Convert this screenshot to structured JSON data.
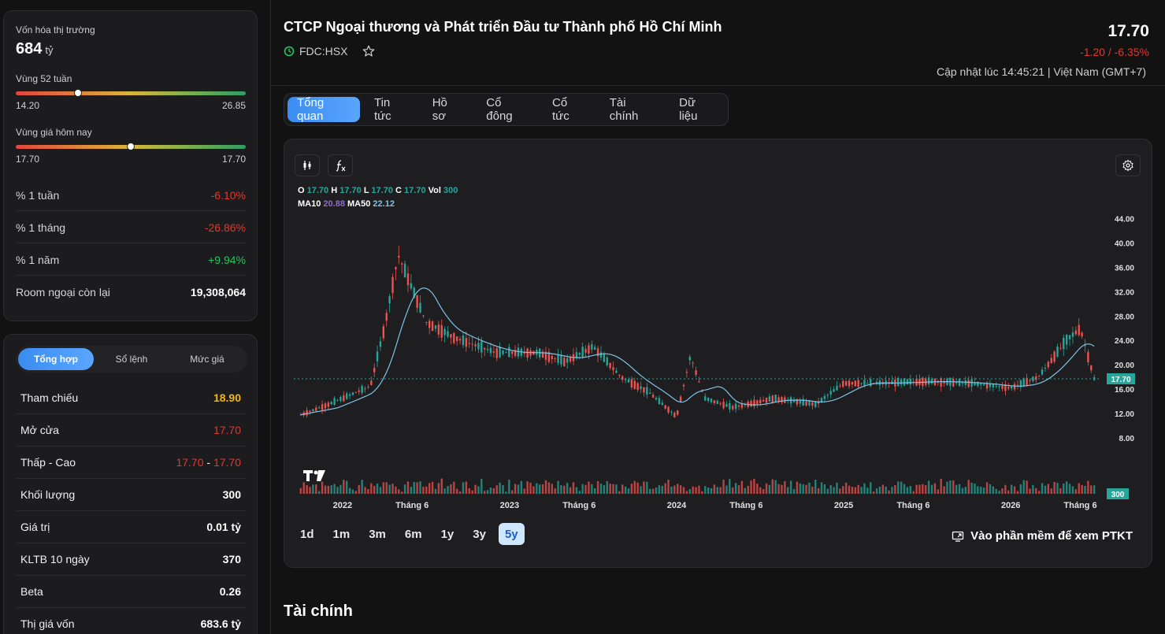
{
  "market": {
    "mcap_label": "Vốn hóa thị trường",
    "mcap_value": "684",
    "mcap_unit": "tỷ",
    "range52": {
      "label": "Vùng 52 tuần",
      "low": "14.20",
      "high": "26.85",
      "position": 0.27
    },
    "range_today": {
      "label": "Vùng giá hôm nay",
      "low": "17.70",
      "high": "17.70",
      "position": 0.5
    },
    "stats": [
      {
        "label": "% 1 tuần",
        "value": "-6.10%",
        "tone": "neg"
      },
      {
        "label": "% 1 tháng",
        "value": "-26.86%",
        "tone": "neg"
      },
      {
        "label": "% 1 năm",
        "value": "+9.94%",
        "tone": "pos"
      },
      {
        "label": "Room ngoại còn lại",
        "value": "19,308,064",
        "tone": "white"
      }
    ]
  },
  "detail": {
    "tabs": [
      "Tổng hợp",
      "Sổ lệnh",
      "Mức giá"
    ],
    "rows": [
      {
        "label": "Tham chiếu",
        "value": "18.90"
      },
      {
        "label": "Mở cửa",
        "value": "17.70"
      },
      {
        "label": "Thấp - Cao",
        "low": "17.70",
        "sep": "-",
        "high": "17.70"
      },
      {
        "label": "Khối lượng",
        "value": "300"
      },
      {
        "label": "Giá trị",
        "value": "0.01 tỷ"
      },
      {
        "label": "KLTB 10 ngày",
        "value": "370"
      },
      {
        "label": "Beta",
        "value": "0.26"
      },
      {
        "label": "Thị giá vốn",
        "value": "683.6 tỷ"
      }
    ]
  },
  "header": {
    "company": "CTCP Ngoại thương và Phát triển Đầu tư Thành phố Hồ Chí Minh",
    "ticker": "FDC:HSX",
    "price": "17.70",
    "change": "-1.20 / -6.35%",
    "updated": "Cập nhật lúc 14:45:21 | Việt Nam (GMT+7)"
  },
  "tabs": [
    "Tổng quan",
    "Tin tức",
    "Hồ sơ",
    "Cổ đông",
    "Cổ tức",
    "Tài chính",
    "Dữ liệu"
  ],
  "ohlc": {
    "o_label": "O",
    "o": "17.70",
    "h_label": "H",
    "h": "17.70",
    "l_label": "L",
    "l": "17.70",
    "c_label": "C",
    "c": "17.70",
    "vol_label": "Vol",
    "vol": "300"
  },
  "ma": {
    "ma10_label": "MA10",
    "ma10": "20.88",
    "ma50_label": "MA50",
    "ma50": "22.12"
  },
  "chart_data": {
    "type": "line",
    "x": [
      "2021-10",
      "2021-12",
      "2022-03",
      "2022-04",
      "2022-05",
      "2022-07",
      "2022-09",
      "2022-12",
      "2023-03",
      "2023-05",
      "2023-07",
      "2023-09",
      "2023-11",
      "2024-01",
      "2024-02",
      "2024-03",
      "2024-05",
      "2024-08",
      "2024-11",
      "2025-01",
      "2025-04",
      "2025-07",
      "2025-10",
      "2026-01",
      "2026-03",
      "2026-05",
      "2026-06",
      "2026-07"
    ],
    "series": [
      {
        "values": [
          11.8,
          13.5,
          16.5,
          26.0,
          38.0,
          27.0,
          24.5,
          22.0,
          22.0,
          20.5,
          23.0,
          18.0,
          15.5,
          11.5,
          21.5,
          14.5,
          13.0,
          14.5,
          13.5,
          17.0,
          17.0,
          17.3,
          17.0,
          16.2,
          18.0,
          24.0,
          26.0,
          17.7
        ]
      }
    ],
    "y_ticks": [
      "44.00",
      "40.00",
      "36.00",
      "32.00",
      "28.00",
      "24.00",
      "20.00",
      "16.00",
      "12.00",
      "8.00"
    ],
    "ylim": [
      4,
      46
    ],
    "x_tick_labels": [
      {
        "label": "2022",
        "x": "2022-01"
      },
      {
        "label": "Tháng 6",
        "x": "2022-06"
      },
      {
        "label": "2023",
        "x": "2023-01"
      },
      {
        "label": "Tháng 6",
        "x": "2023-06"
      },
      {
        "label": "2024",
        "x": "2024-01"
      },
      {
        "label": "Tháng 6",
        "x": "2024-06"
      },
      {
        "label": "2025",
        "x": "2025-01"
      },
      {
        "label": "Tháng 6",
        "x": "2025-06"
      },
      {
        "label": "2026",
        "x": "2026-01"
      },
      {
        "label": "Tháng 6",
        "x": "2026-06"
      }
    ],
    "last_price": 17.7,
    "last_price_label": "17.70",
    "last_volume_label": "300",
    "colors": {
      "up": "#26a69a",
      "down": "#ef5350",
      "ma": "#7ec3e6",
      "ma10": "#8e6ad8"
    }
  },
  "ranges": [
    "1d",
    "1m",
    "3m",
    "6m",
    "1y",
    "3y",
    "5y"
  ],
  "active_range": "5y",
  "ptkt_label": "Vào phần mềm để xem PTKT",
  "section_title": "Tài chính"
}
